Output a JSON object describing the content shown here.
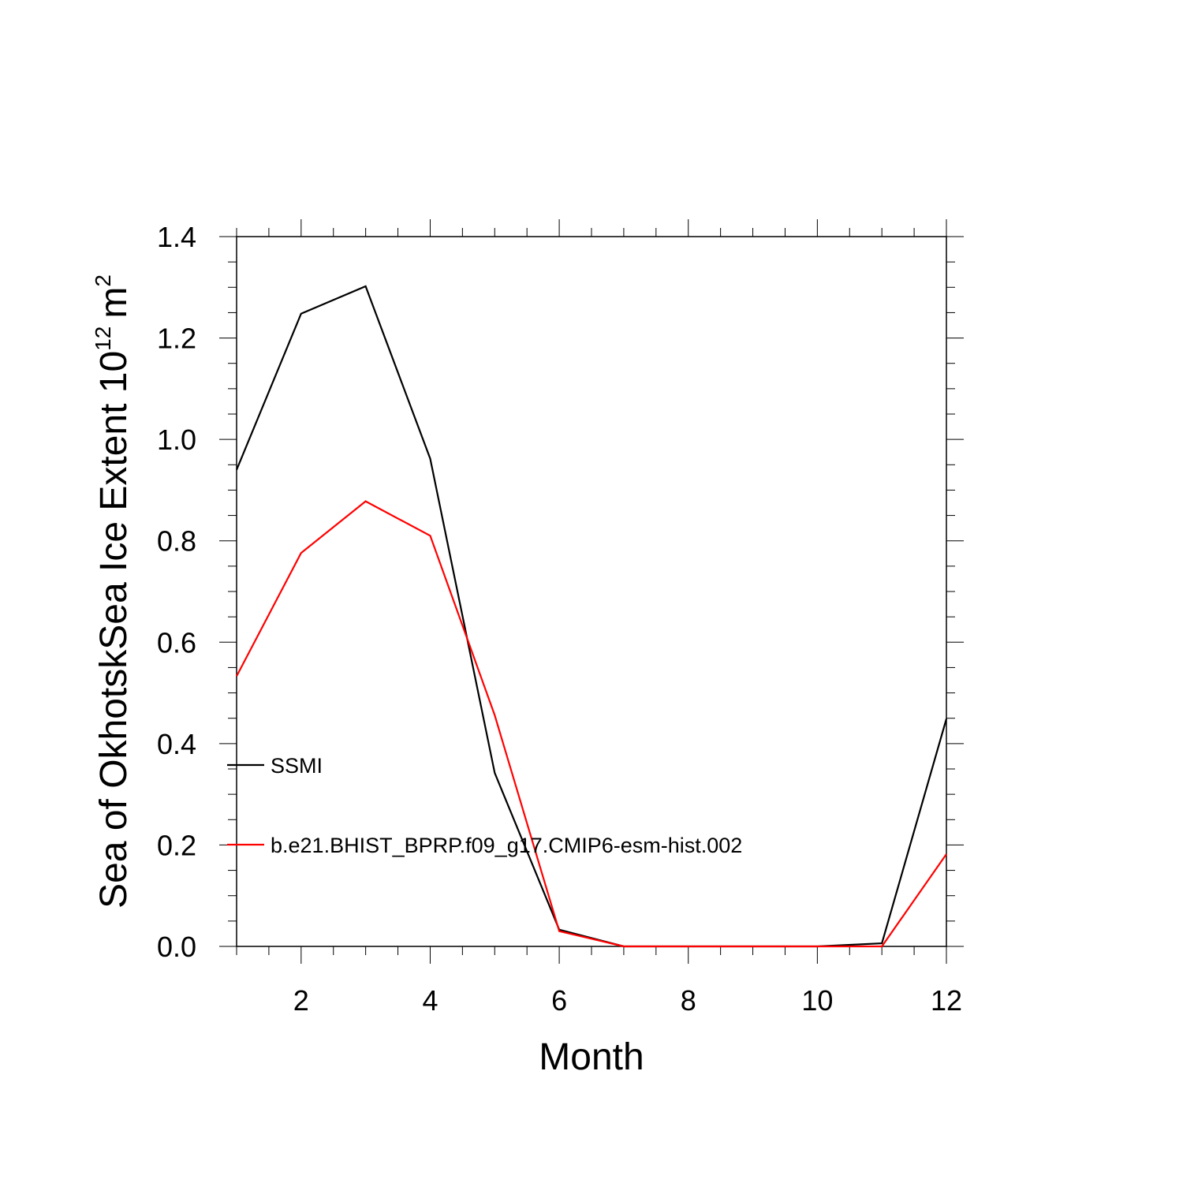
{
  "chart_data": {
    "type": "line",
    "xlabel": "Month",
    "ylabel": "Sea of OkhotskSea Ice Extent 10",
    "ylabel_superscript": "12",
    "ylabel_unit": "m",
    "ylabel_unit_superscript": "2",
    "xlim": [
      1,
      12
    ],
    "ylim": [
      0,
      1.4
    ],
    "x_ticks": [
      2,
      4,
      6,
      8,
      10,
      12
    ],
    "y_ticks": [
      "0.0",
      "0.2",
      "0.4",
      "0.6",
      "0.8",
      "1.0",
      "1.2",
      "1.4"
    ],
    "x": [
      1,
      2,
      3,
      4,
      5,
      6,
      7,
      8,
      9,
      10,
      11,
      12
    ],
    "series": [
      {
        "name": "SSMI",
        "color": "#000000",
        "values": [
          0.94,
          1.248,
          1.302,
          0.962,
          0.342,
          0.033,
          0.0,
          0.0,
          0.0,
          0.0,
          0.006,
          0.449
        ]
      },
      {
        "name": "b.e21.BHIST_BPRP.f09_g17.CMIP6-esm-hist.002",
        "color": "#ff0000",
        "values": [
          0.533,
          0.776,
          0.878,
          0.81,
          0.456,
          0.03,
          0.0,
          0.0,
          0.0,
          0.0,
          0.0,
          0.182
        ]
      }
    ],
    "legend_position": "inside-left"
  }
}
